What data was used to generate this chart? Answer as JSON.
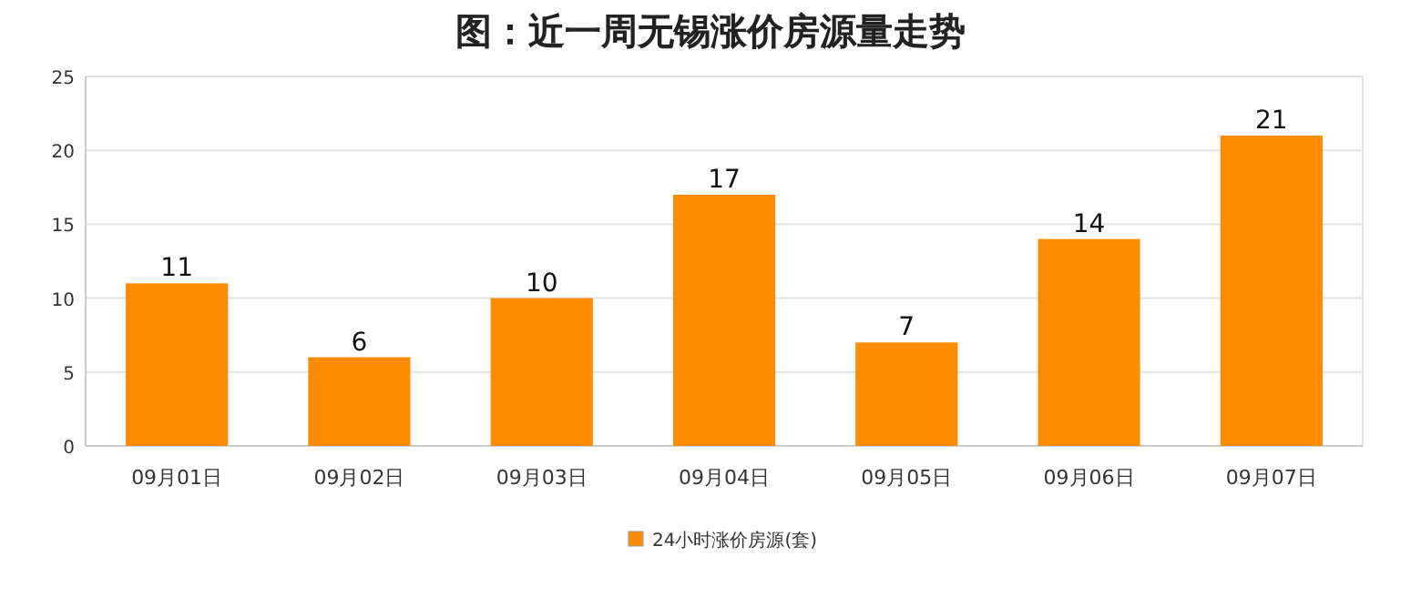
{
  "chart_data": {
    "type": "bar",
    "title": "图：近一周无锡涨价房源量走势",
    "categories": [
      "09月01日",
      "09月02日",
      "09月03日",
      "09月04日",
      "09月05日",
      "09月06日",
      "09月07日"
    ],
    "series": [
      {
        "name": "24小时涨价房源(套)",
        "color": "#ff8c00",
        "values": [
          11,
          6,
          10,
          17,
          7,
          14,
          21
        ]
      }
    ],
    "ylim": [
      0,
      25
    ],
    "yticks": [
      0,
      5,
      10,
      15,
      20,
      25
    ],
    "grid": "y",
    "legend": "bottom",
    "data_labels": true
  }
}
